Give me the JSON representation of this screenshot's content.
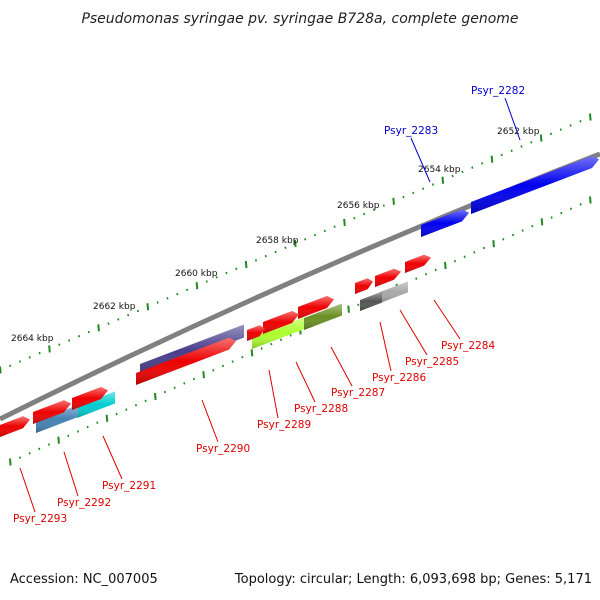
{
  "title": "Pseudomonas syringae pv. syringae B728a, complete genome",
  "accession_label": "Accession: NC_007005",
  "summary_label": "Topology: circular; Length: 6,093,698 bp; Genes: 5,171",
  "colors": {
    "backbone": "#808080",
    "tick": "#1f8a1f",
    "label_forward": "#0000cc",
    "label_reverse": "#dd0000"
  },
  "ticks": [
    {
      "label": "2652 kbp"
    },
    {
      "label": "2654 kbp"
    },
    {
      "label": "2656 kbp"
    },
    {
      "label": "2658 kbp"
    },
    {
      "label": "2660 kbp"
    },
    {
      "label": "2662 kbp"
    },
    {
      "label": "2664 kbp"
    }
  ],
  "genes": [
    {
      "name": "Psyr_2282",
      "strand": "forward",
      "color": "#0000ee"
    },
    {
      "name": "Psyr_2283",
      "strand": "forward",
      "color": "#0000ee"
    },
    {
      "name": "Psyr_2284",
      "strand": "reverse",
      "color": "#ee0000"
    },
    {
      "name": "Psyr_2285",
      "strand": "reverse",
      "color": "#ee0000"
    },
    {
      "name": "Psyr_2286",
      "strand": "reverse",
      "color": "#ee0000"
    },
    {
      "name": "Psyr_2287",
      "strand": "reverse",
      "color": "#ee0000"
    },
    {
      "name": "Psyr_2288",
      "strand": "reverse",
      "color": "#ee0000"
    },
    {
      "name": "Psyr_2289",
      "strand": "reverse",
      "color": "#ee0000"
    },
    {
      "name": "Psyr_2290",
      "strand": "reverse",
      "color": "#ee0000"
    },
    {
      "name": "Psyr_2291",
      "strand": "reverse",
      "color": "#ee0000"
    },
    {
      "name": "Psyr_2292",
      "strand": "reverse",
      "color": "#ee0000"
    },
    {
      "name": "Psyr_2293",
      "strand": "reverse",
      "color": "#ee0000"
    }
  ],
  "feature_colors": [
    "#a8a8a8",
    "#555555",
    "#6b8e23",
    "#adff2f",
    "#483d8b",
    "#00ced1",
    "#4682b4"
  ]
}
